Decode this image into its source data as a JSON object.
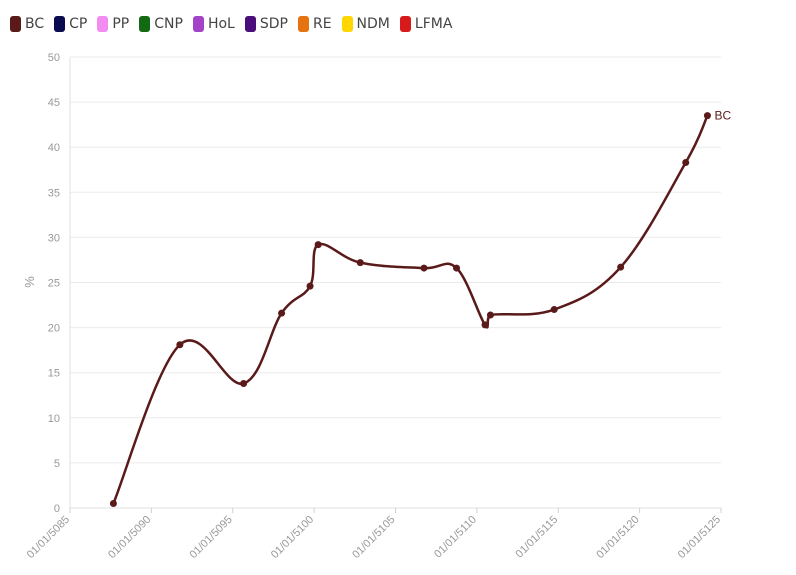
{
  "legend": {
    "items": [
      {
        "label": "BC",
        "color": "#5a1a1a"
      },
      {
        "label": "CP",
        "color": "#0b0b4f"
      },
      {
        "label": "PP",
        "color": "#f28cf0"
      },
      {
        "label": "CNP",
        "color": "#136a13"
      },
      {
        "label": "HoL",
        "color": "#a243c8"
      },
      {
        "label": "SDP",
        "color": "#4a0e7a"
      },
      {
        "label": "RE",
        "color": "#e67310"
      },
      {
        "label": "NDM",
        "color": "#ffd600"
      },
      {
        "label": "LFMA",
        "color": "#d81a1a"
      }
    ]
  },
  "chart_data": {
    "type": "line",
    "title": "",
    "xlabel": "",
    "ylabel": "%",
    "xlim": [
      "01/01/5085",
      "01/01/5125"
    ],
    "ylim": [
      0,
      50
    ],
    "x_ticks": [
      "01/01/5085",
      "01/01/5090",
      "01/01/5095",
      "01/01/5100",
      "01/01/5105",
      "01/01/5110",
      "01/01/5115",
      "01/01/5120",
      "01/01/5125"
    ],
    "y_ticks": [
      0,
      5,
      10,
      15,
      20,
      25,
      30,
      35,
      40,
      45,
      50
    ],
    "grid": true,
    "legend_position": "top-left",
    "series": [
      {
        "name": "BC",
        "color": "#5a1a1a",
        "end_label": "BC",
        "points": [
          {
            "x": "5087-09",
            "y": 0.5
          },
          {
            "x": "5091-10",
            "y": 18.1
          },
          {
            "x": "5095-09",
            "y": 13.8
          },
          {
            "x": "5098-01",
            "y": 21.6
          },
          {
            "x": "5099-10",
            "y": 24.6
          },
          {
            "x": "5100-04",
            "y": 29.2
          },
          {
            "x": "5102-11",
            "y": 27.2
          },
          {
            "x": "5106-10",
            "y": 26.6
          },
          {
            "x": "5108-10",
            "y": 26.6
          },
          {
            "x": "5110-07",
            "y": 20.3
          },
          {
            "x": "5110-11",
            "y": 21.4
          },
          {
            "x": "5114-10",
            "y": 22.0
          },
          {
            "x": "5118-11",
            "y": 26.7
          },
          {
            "x": "5122-11",
            "y": 38.3
          },
          {
            "x": "5124-03",
            "y": 43.5
          }
        ]
      }
    ]
  }
}
